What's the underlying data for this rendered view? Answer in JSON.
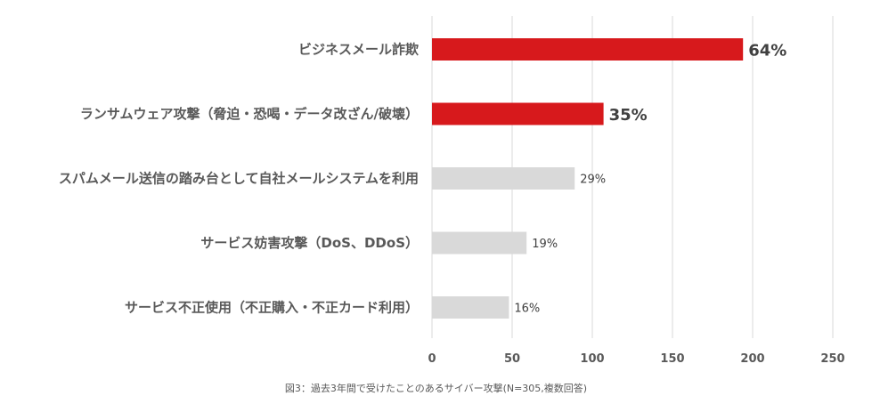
{
  "chart_data": {
    "type": "bar",
    "orientation": "horizontal",
    "categories": [
      "ビジネスメール詐欺",
      "ランサムウェア攻撃（脅迫・恐喝・データ改ざん/破壊）",
      "スパムメール送信の踏み台として自社メールシステムを利用",
      "サービス妨害攻撃（DoS、DDoS）",
      "サービス不正使用（不正購入・不正カード利用）"
    ],
    "values": [
      194,
      107,
      89,
      59,
      48
    ],
    "value_labels": [
      "64%",
      "35%",
      "29%",
      "19%",
      "16%"
    ],
    "highlight": [
      true,
      true,
      false,
      false,
      false
    ],
    "xlim": [
      0,
      250
    ],
    "xticks": [
      "0",
      "50",
      "100",
      "150",
      "200",
      "250"
    ],
    "grid": "vertical",
    "colors": {
      "highlight": "#d7191c",
      "normal": "#d9d9d9",
      "grid": "#d9d9d9"
    },
    "caption": "図3：過去3年間で受けたことのあるサイバー攻撃(N=305,複数回答)"
  }
}
